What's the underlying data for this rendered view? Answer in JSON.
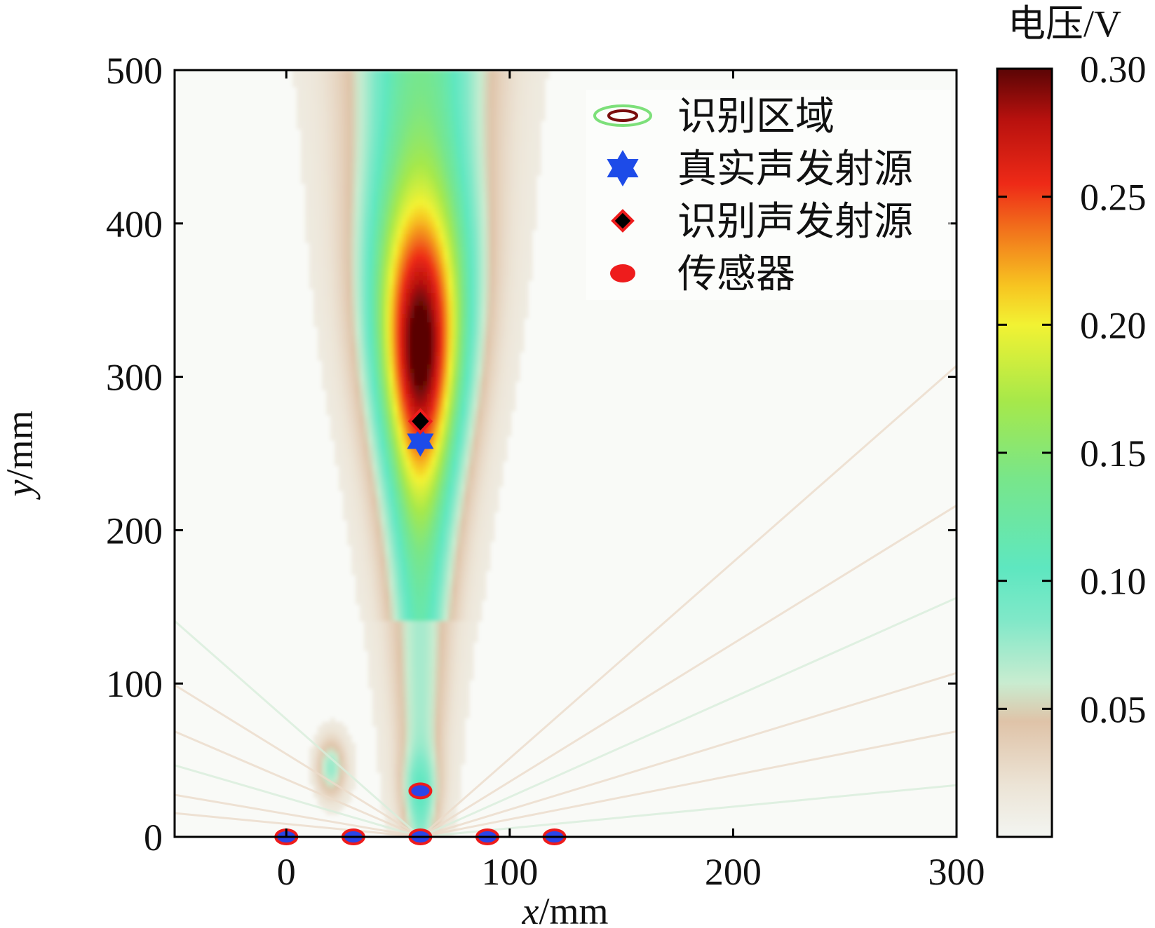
{
  "chart_data": {
    "type": "heatmap",
    "subtype": "contour",
    "xlabel": "x/mm",
    "ylabel": "y/mm",
    "xlim": [
      -50,
      300
    ],
    "ylim": [
      0,
      500
    ],
    "xticks": [
      "0",
      "100",
      "200",
      "300"
    ],
    "yticks": [
      "0",
      "100",
      "200",
      "300",
      "400",
      "500"
    ],
    "xtick_values": [
      0,
      100,
      200,
      300
    ],
    "ytick_values": [
      0,
      100,
      200,
      300,
      400,
      500
    ],
    "colorbar": {
      "label": "电压/V",
      "range": [
        0,
        0.3
      ],
      "ticks": [
        "0.05",
        "0.10",
        "0.15",
        "0.20",
        "0.25",
        "0.30"
      ],
      "tick_values": [
        0.05,
        0.1,
        0.15,
        0.2,
        0.25,
        0.3
      ],
      "stops": [
        {
          "v": 0.0,
          "color": "#f3f5f1"
        },
        {
          "v": 0.02,
          "color": "#ece4d6"
        },
        {
          "v": 0.045,
          "color": "#dfc3a8"
        },
        {
          "v": 0.06,
          "color": "#c9ecd0"
        },
        {
          "v": 0.085,
          "color": "#7fe8c8"
        },
        {
          "v": 0.105,
          "color": "#5ee7c0"
        },
        {
          "v": 0.14,
          "color": "#78e68a"
        },
        {
          "v": 0.17,
          "color": "#a6e84a"
        },
        {
          "v": 0.2,
          "color": "#f2f233"
        },
        {
          "v": 0.215,
          "color": "#f7c521"
        },
        {
          "v": 0.235,
          "color": "#f27a1c"
        },
        {
          "v": 0.255,
          "color": "#ee2a17"
        },
        {
          "v": 0.28,
          "color": "#b8110e"
        },
        {
          "v": 0.3,
          "color": "#5a0505"
        }
      ]
    },
    "legend": {
      "position": "top-right",
      "entries": [
        {
          "label": "识别区域",
          "marker": "ellipse-contour"
        },
        {
          "label": "真实声发射源",
          "marker": "blue-hexagram"
        },
        {
          "label": "识别声发射源",
          "marker": "black-diamond"
        },
        {
          "label": "传感器",
          "marker": "red-circle"
        }
      ]
    },
    "real_source": {
      "x": 60,
      "y": 258
    },
    "identified_source": {
      "x": 60,
      "y": 271
    },
    "sensors": [
      {
        "x": 0,
        "y": 0
      },
      {
        "x": 30,
        "y": 0
      },
      {
        "x": 60,
        "y": 0
      },
      {
        "x": 90,
        "y": 0
      },
      {
        "x": 120,
        "y": 0
      },
      {
        "x": 60,
        "y": 30
      }
    ],
    "peak_voltage": 0.28,
    "grid": false
  }
}
